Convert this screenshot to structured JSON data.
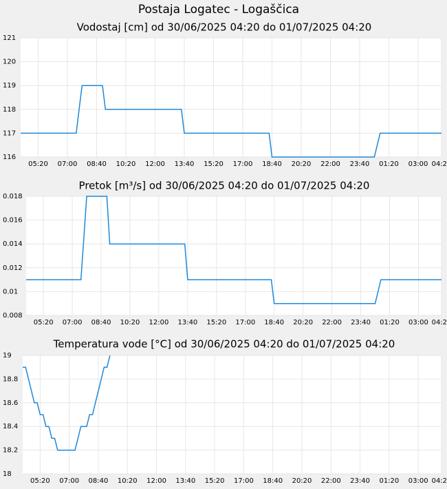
{
  "title": "Postaja Logatec - Logaščica",
  "chart_data": [
    {
      "type": "line",
      "title": "Vodostaj [cm] od 30/06/2025 04:20 do 01/07/2025 04:20",
      "x": [
        "04:20",
        "07:30",
        "07:50",
        "09:00",
        "09:10",
        "13:30",
        "13:40",
        "18:30",
        "18:40",
        "00:30",
        "00:50",
        "04:20"
      ],
      "series": [
        {
          "color": "#1e88d8",
          "values": [
            117,
            117,
            119,
            119,
            118,
            118,
            117,
            117,
            116,
            116,
            117,
            117
          ]
        }
      ],
      "xlim": [
        "04:20",
        "04:20"
      ],
      "xticks": [
        "05:20",
        "07:00",
        "08:40",
        "10:20",
        "12:00",
        "13:40",
        "15:20",
        "17:00",
        "18:40",
        "20:20",
        "22:00",
        "23:40",
        "01:20",
        "03:00",
        "04:20"
      ],
      "ylim": [
        116,
        121
      ],
      "yticks": [
        116,
        117,
        118,
        119,
        120,
        121
      ],
      "grid": true
    },
    {
      "type": "line",
      "title": "Pretok [m³/s] od 30/06/2025 04:20 do 01/07/2025 04:20",
      "x": [
        "04:20",
        "07:30",
        "07:50",
        "09:00",
        "09:10",
        "13:30",
        "13:40",
        "18:30",
        "18:40",
        "00:30",
        "00:50",
        "04:20"
      ],
      "series": [
        {
          "color": "#1e88d8",
          "values": [
            0.011,
            0.011,
            0.018,
            0.018,
            0.014,
            0.014,
            0.011,
            0.011,
            0.009,
            0.009,
            0.011,
            0.011
          ]
        }
      ],
      "xlim": [
        "04:20",
        "04:20"
      ],
      "xticks": [
        "05:20",
        "07:00",
        "08:40",
        "10:20",
        "12:00",
        "13:40",
        "15:20",
        "17:00",
        "18:40",
        "20:20",
        "22:00",
        "23:40",
        "01:20",
        "03:00",
        "04:20"
      ],
      "ylim": [
        0.008,
        0.018
      ],
      "yticks": [
        0.008,
        0.01,
        0.012,
        0.014,
        0.016,
        0.018
      ],
      "grid": true
    },
    {
      "type": "line",
      "title": "Temperatura vode [°C] od 30/06/2025 04:20 do 01/07/2025 04:20",
      "x": [
        "04:20",
        "04:30",
        "04:40",
        "04:50",
        "05:00",
        "05:10",
        "05:20",
        "05:30",
        "05:40",
        "05:50",
        "06:00",
        "06:10",
        "06:20",
        "06:30",
        "06:40",
        "06:50",
        "07:00",
        "07:10",
        "07:20",
        "07:30",
        "07:40",
        "07:50",
        "08:00",
        "08:10",
        "08:20",
        "08:30",
        "08:40",
        "08:50",
        "09:00",
        "09:10",
        "09:20"
      ],
      "series": [
        {
          "color": "#1e88d8",
          "values": [
            18.9,
            18.9,
            18.8,
            18.7,
            18.6,
            18.6,
            18.5,
            18.5,
            18.4,
            18.4,
            18.3,
            18.3,
            18.2,
            18.2,
            18.2,
            18.2,
            18.2,
            18.2,
            18.2,
            18.3,
            18.4,
            18.4,
            18.4,
            18.5,
            18.5,
            18.6,
            18.7,
            18.8,
            18.9,
            18.9,
            19
          ]
        }
      ],
      "xlim": [
        "04:20",
        "04:20"
      ],
      "xticks": [
        "05:20",
        "07:00",
        "08:40",
        "10:20",
        "12:00",
        "13:40",
        "15:20",
        "17:00",
        "18:40",
        "20:20",
        "22:00",
        "23:40",
        "01:20",
        "03:00",
        "04:20"
      ],
      "ylim": [
        18,
        19
      ],
      "yticks": [
        18,
        18.2,
        18.4,
        18.6,
        18.8,
        19
      ],
      "grid": true
    }
  ]
}
